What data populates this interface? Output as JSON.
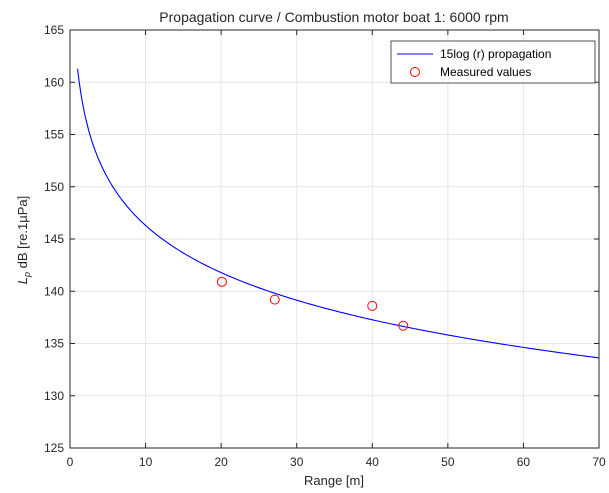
{
  "chart_data": {
    "type": "line",
    "title": "Propagation curve / Combustion motor boat 1: 6000 rpm",
    "xlabel": "Range [m]",
    "ylabel_symbol": "L",
    "ylabel_subscript": "p",
    "ylabel_rest": " dB [re.1µPa]",
    "xlim": [
      0,
      70
    ],
    "ylim": [
      125,
      165
    ],
    "xticks": [
      "0",
      "10",
      "20",
      "30",
      "40",
      "50",
      "60",
      "70"
    ],
    "yticks": [
      "125",
      "130",
      "135",
      "140",
      "145",
      "150",
      "155",
      "160",
      "165"
    ],
    "grid": true,
    "legend_position": "top-right",
    "series": [
      {
        "name": "15log (r) propagation",
        "kind": "line",
        "color": "#0000ff",
        "model": {
          "a": 161.3,
          "b": 15,
          "x_start": 1,
          "x_end": 70
        }
      },
      {
        "name": "Measured values",
        "kind": "scatter",
        "color": "#ff0000",
        "points": [
          {
            "x": 20.1,
            "y": 140.9
          },
          {
            "x": 27.1,
            "y": 139.2
          },
          {
            "x": 40.0,
            "y": 138.6
          },
          {
            "x": 44.1,
            "y": 136.7
          }
        ]
      }
    ]
  }
}
